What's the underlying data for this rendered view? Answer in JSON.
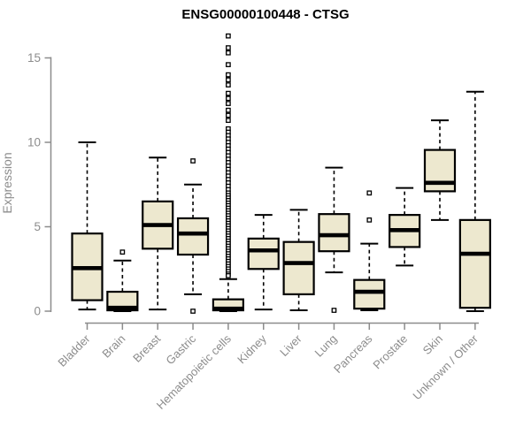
{
  "chart_data": {
    "type": "boxplot",
    "title": "ENSG00000100448 - CTSG",
    "ylabel": "Expression",
    "xlabel": "",
    "ylim": [
      0,
      16.5
    ],
    "yticks": [
      0,
      5,
      10,
      15
    ],
    "grid": false,
    "legend": null,
    "categories": [
      "Bladder",
      "Brain",
      "Breast",
      "Gastric",
      "Hematopoietic cells",
      "Kidney",
      "Liver",
      "Lung",
      "Pancreas",
      "Prostate",
      "Skin",
      "Unknown / Other"
    ],
    "series": [
      {
        "category": "Bladder",
        "whisker_low": 0.1,
        "q1": 0.65,
        "median": 2.55,
        "q3": 4.6,
        "whisker_high": 10.0,
        "outliers": []
      },
      {
        "category": "Brain",
        "whisker_low": 0.0,
        "q1": 0.05,
        "median": 0.2,
        "q3": 1.15,
        "whisker_high": 3.0,
        "outliers": [
          3.5
        ]
      },
      {
        "category": "Breast",
        "whisker_low": 0.1,
        "q1": 3.7,
        "median": 5.1,
        "q3": 6.5,
        "whisker_high": 9.1,
        "outliers": []
      },
      {
        "category": "Gastric",
        "whisker_low": 1.0,
        "q1": 3.35,
        "median": 4.6,
        "q3": 5.5,
        "whisker_high": 7.5,
        "outliers": [
          8.9,
          0.0
        ]
      },
      {
        "category": "Hematopoietic cells",
        "whisker_low": 0.0,
        "q1": 0.05,
        "median": 0.15,
        "q3": 0.7,
        "whisker_high": 1.9,
        "outliers": [
          16.3,
          15.6,
          15.3,
          14.6,
          14.0,
          13.7,
          13.4,
          12.9,
          12.6,
          12.3,
          11.9,
          11.6,
          11.3,
          10.8,
          10.6,
          10.4,
          10.2,
          10.0,
          9.8,
          9.6,
          9.4,
          9.2,
          9.0,
          8.8,
          8.6,
          8.4,
          8.2,
          8.0,
          7.8,
          7.6,
          7.4,
          7.2,
          7.0,
          6.85,
          6.7,
          6.55,
          6.4,
          6.25,
          6.1,
          5.95,
          5.8,
          5.65,
          5.5,
          5.35,
          5.2,
          5.05,
          4.9,
          4.75,
          4.6,
          4.45,
          4.3,
          4.15,
          4.0,
          3.85,
          3.7,
          3.55,
          3.4,
          3.25,
          3.1,
          2.95,
          2.8,
          2.65,
          2.5,
          2.35,
          2.2,
          2.1
        ]
      },
      {
        "category": "Kidney",
        "whisker_low": 0.1,
        "q1": 2.5,
        "median": 3.6,
        "q3": 4.3,
        "whisker_high": 5.7,
        "outliers": []
      },
      {
        "category": "Liver",
        "whisker_low": 0.05,
        "q1": 1.0,
        "median": 2.85,
        "q3": 4.1,
        "whisker_high": 6.0,
        "outliers": []
      },
      {
        "category": "Lung",
        "whisker_low": 2.3,
        "q1": 3.55,
        "median": 4.5,
        "q3": 5.75,
        "whisker_high": 8.5,
        "outliers": [
          0.05
        ]
      },
      {
        "category": "Pancreas",
        "whisker_low": 0.05,
        "q1": 0.15,
        "median": 1.15,
        "q3": 1.85,
        "whisker_high": 4.0,
        "outliers": [
          5.4,
          7.0
        ]
      },
      {
        "category": "Prostate",
        "whisker_low": 2.7,
        "q1": 3.8,
        "median": 4.8,
        "q3": 5.7,
        "whisker_high": 7.3,
        "outliers": []
      },
      {
        "category": "Skin",
        "whisker_low": 5.4,
        "q1": 7.1,
        "median": 7.6,
        "q3": 9.55,
        "whisker_high": 11.3,
        "outliers": []
      },
      {
        "category": "Unknown / Other",
        "whisker_low": 0.0,
        "q1": 0.2,
        "median": 3.4,
        "q3": 5.4,
        "whisker_high": 13.0,
        "outliers": []
      }
    ],
    "colors": {
      "box_fill": "#ede8cf",
      "box_stroke": "#000000",
      "median": "#000000",
      "whisker": "#000000",
      "outlier_stroke": "#000000",
      "outlier_fill": "#ffffff",
      "axis": "#8c8c8c",
      "tick_label": "#8c8c8c",
      "title": "#000000"
    }
  }
}
